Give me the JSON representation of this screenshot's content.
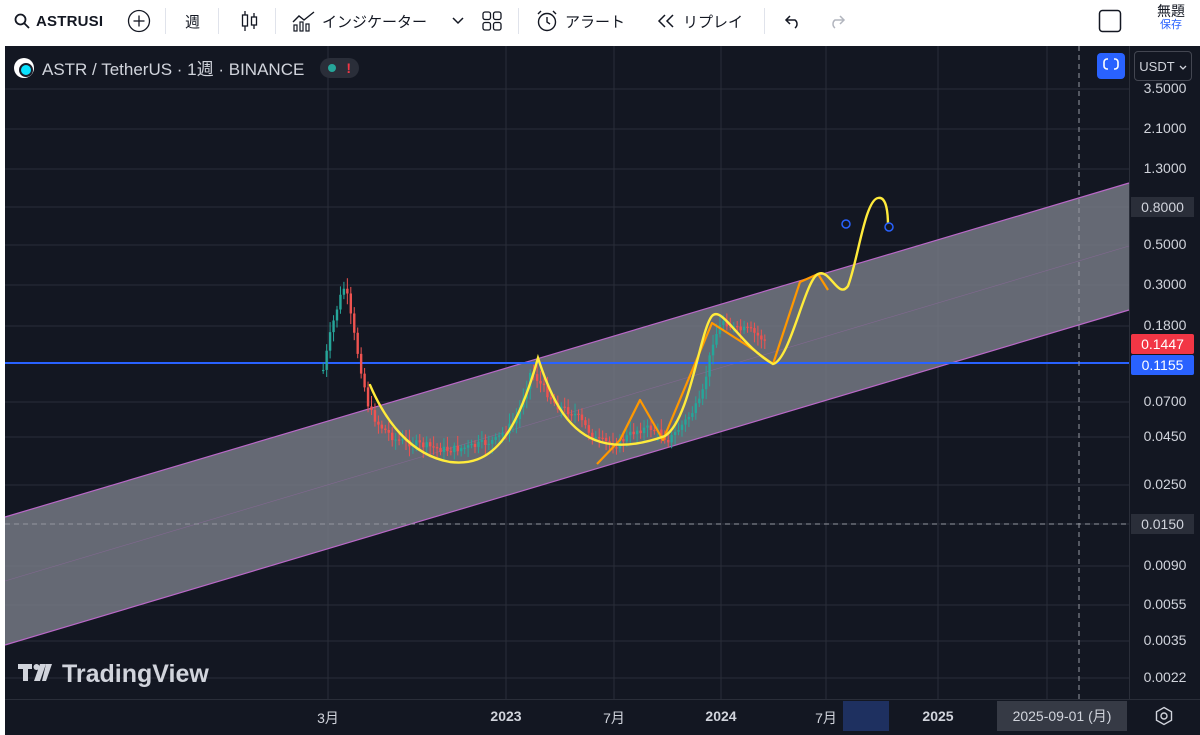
{
  "toolbar": {
    "symbol": "ASTRUSI",
    "interval": "週",
    "indicators_label": "インジケーター",
    "alert_label": "アラート",
    "replay_label": "リプレイ",
    "save_title": "無題",
    "save_sub": "保存"
  },
  "legend": {
    "title": "ASTR / TetherUS · 1週 · BINANCE",
    "status_mark": "!"
  },
  "currency": "USDT",
  "price_axis": {
    "ticks": [
      "3.5000",
      "2.1000",
      "1.3000",
      "0.8000",
      "0.5000",
      "0.3000",
      "0.1800",
      "0.0700",
      "0.0450",
      "0.0250",
      "0.0150",
      "0.0090",
      "0.0055",
      "0.0035",
      "0.0022"
    ],
    "last_price": "0.1447",
    "line_price": "0.1155"
  },
  "time_axis": {
    "ticks": [
      "3月",
      "2023",
      "7月",
      "2024",
      "7月",
      "2025"
    ],
    "crosshair_date": "2025-09-01 (月)"
  },
  "watermark": "TradingView",
  "colors": {
    "background": "#131722",
    "channel_fill": "#787b86",
    "channel_border": "#ba68c8",
    "horizontal_line": "#2962ff",
    "up_candle": "#26a69a",
    "down_candle": "#ef5350",
    "yellow_path": "#ffeb3b",
    "orange_path": "#ff9800",
    "last_price_tag": "#f23645",
    "line_price_tag": "#2962ff"
  }
}
